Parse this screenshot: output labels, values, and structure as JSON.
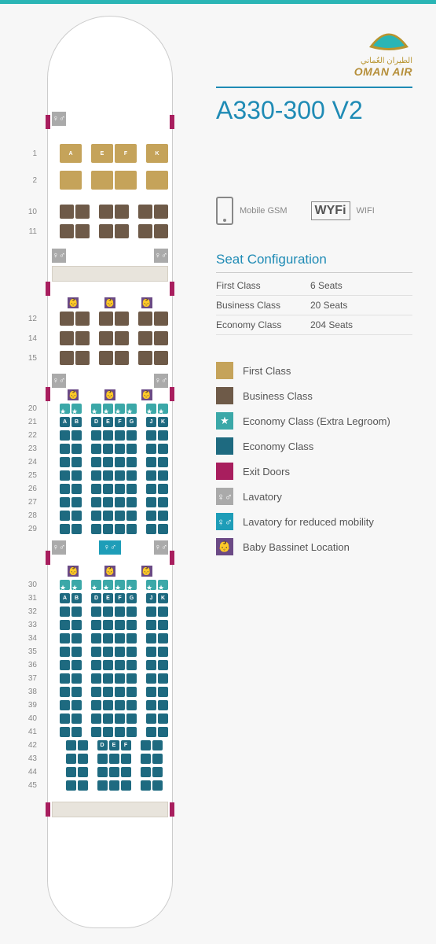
{
  "brand": {
    "arabic": "الطيران العُماني",
    "name": "OMAN AIR"
  },
  "title": "A330-300 V2",
  "features": {
    "gsm": "Mobile GSM",
    "wifi_logo": "WYFi",
    "wifi": "WIFI"
  },
  "config": {
    "heading": "Seat Configuration",
    "rows": [
      {
        "cls": "First Class",
        "seats": "6 Seats"
      },
      {
        "cls": "Business Class",
        "seats": "20 Seats"
      },
      {
        "cls": "Economy Class",
        "seats": "204 Seats"
      }
    ]
  },
  "legend": [
    {
      "color": "#c5a35a",
      "label": "First Class"
    },
    {
      "color": "#6e5a48",
      "label": "Business Class"
    },
    {
      "color": "#3ba8a8",
      "label": "Economy Class (Extra Legroom)",
      "icon": "★"
    },
    {
      "color": "#1e6a80",
      "label": "Economy Class"
    },
    {
      "color": "#a81e5e",
      "label": "Exit Doors"
    },
    {
      "color": "#aaaaaa",
      "label": "Lavatory",
      "icon": "♀♂"
    },
    {
      "color": "#1e9db8",
      "label": "Lavatory for reduced mobility",
      "icon": "♀♂"
    },
    {
      "color": "#6b4a85",
      "label": "Baby Bassinet Location",
      "icon": "👶"
    }
  ],
  "colors": {
    "first": "#c5a35a",
    "business": "#6e5a48",
    "extra": "#3ba8a8",
    "economy": "#1e6a80",
    "exit": "#a81e5e",
    "lav": "#aaaaaa",
    "lav_acc": "#1e9db8",
    "bassinet": "#6b4a85"
  },
  "seat_letters_first": [
    "A",
    "E",
    "F",
    "K"
  ],
  "seat_letters_econ": [
    "A",
    "B",
    "D",
    "E",
    "F",
    "G",
    "J",
    "K"
  ],
  "seat_letters_center": [
    "D",
    "E",
    "F"
  ],
  "first_rows": [
    "1",
    "2"
  ],
  "business_rows_1": [
    "10",
    "11"
  ],
  "business_rows_2": [
    "12",
    "14",
    "15"
  ],
  "econ_rows_1": [
    "20",
    "21",
    "22",
    "23",
    "24",
    "25",
    "26",
    "27",
    "28",
    "29"
  ],
  "econ_rows_2": [
    "30",
    "31",
    "32",
    "33",
    "34",
    "35",
    "36",
    "37",
    "38",
    "39",
    "40",
    "41",
    "42",
    "43",
    "44",
    "45"
  ],
  "extra_rows": [
    "20",
    "30"
  ],
  "label_rows": {
    "21": true,
    "31": true,
    "42": "center"
  }
}
